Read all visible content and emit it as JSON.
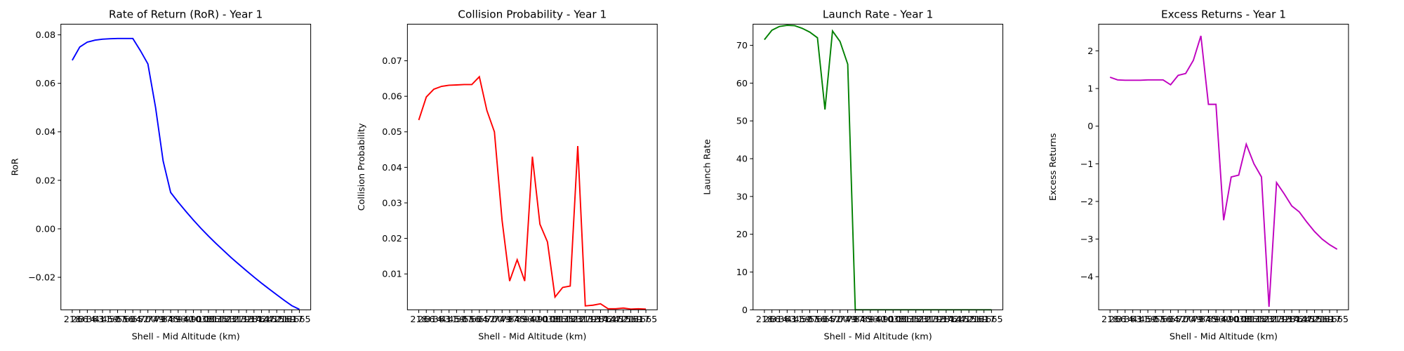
{
  "chart_data": [
    {
      "type": "line",
      "title": "Rate of Return (RoR) - Year 1",
      "xlabel": "Shell - Mid Altitude (km)",
      "ylabel": "RoR",
      "color": "#0000ff",
      "x": [
        218,
        266,
        314,
        363,
        411,
        459,
        507,
        556,
        604,
        652,
        700,
        749,
        797,
        845,
        893,
        942,
        990,
        1038,
        1086,
        1135,
        1183,
        1231,
        1279,
        1328,
        1376,
        1424,
        1472,
        1521,
        1569,
        1617,
        1665
      ],
      "values": [
        0.0695,
        0.075,
        0.077,
        0.0778,
        0.0782,
        0.0784,
        0.0785,
        0.0785,
        0.0785,
        0.0735,
        0.068,
        0.05,
        0.028,
        0.015,
        0.011,
        0.0072,
        0.0036,
        0.0002,
        -0.003,
        -0.0061,
        -0.009,
        -0.0119,
        -0.0146,
        -0.0173,
        -0.0199,
        -0.0224,
        -0.0248,
        -0.0272,
        -0.0295,
        -0.0317,
        -0.0332
      ],
      "xlim": [
        145.65,
        1737.35
      ],
      "ylim": [
        -0.0334,
        0.0844
      ],
      "yticks": [
        {
          "value": -0.02,
          "label": "−0.02"
        },
        {
          "value": 0,
          "label": "0.00"
        },
        0.02,
        0.04,
        0.06,
        0.08
      ]
    },
    {
      "type": "line",
      "title": "Collision Probability - Year 1",
      "xlabel": "Shell - Mid Altitude (km)",
      "ylabel": "Collision Probability",
      "color": "#ff0000",
      "x": [
        218,
        266,
        314,
        363,
        411,
        459,
        507,
        556,
        604,
        652,
        700,
        749,
        797,
        845,
        893,
        942,
        990,
        1038,
        1086,
        1135,
        1183,
        1231,
        1279,
        1328,
        1376,
        1424,
        1472,
        1521,
        1569,
        1617,
        1665
      ],
      "values": [
        0.0533,
        0.0598,
        0.062,
        0.0628,
        0.0631,
        0.0632,
        0.0633,
        0.0633,
        0.0655,
        0.056,
        0.05,
        0.025,
        0.008,
        0.014,
        0.008,
        0.043,
        0.024,
        0.019,
        0.0035,
        0.0062,
        0.0066,
        0.046,
        0.001,
        0.0012,
        0.0016,
        0.0002,
        0.0002,
        0.0004,
        0.0001,
        0.0002,
        0.0001
      ],
      "xlim": [
        145.65,
        1737.35
      ],
      "ylim": [
        -0.0001,
        0.0803
      ],
      "yticks": [
        0.01,
        0.02,
        0.03,
        0.04,
        0.05,
        0.06,
        0.07
      ]
    },
    {
      "type": "line",
      "title": "Launch Rate - Year 1",
      "xlabel": "Shell - Mid Altitude (km)",
      "ylabel": "Launch Rate",
      "color": "#008000",
      "x": [
        218,
        266,
        314,
        363,
        411,
        459,
        507,
        556,
        604,
        652,
        700,
        749,
        797,
        845,
        893,
        942,
        990,
        1038,
        1086,
        1135,
        1183,
        1231,
        1279,
        1328,
        1376,
        1424,
        1472,
        1521,
        1569,
        1617,
        1665
      ],
      "values": [
        71.5,
        74,
        75,
        75.3,
        75.2,
        74.5,
        73.5,
        72,
        53,
        73.8,
        71,
        65,
        0,
        0,
        0,
        0,
        0,
        0,
        0,
        0,
        0,
        0,
        0,
        0,
        0,
        0,
        0,
        0,
        0,
        0,
        0
      ],
      "xlim": [
        145.65,
        1737.35
      ],
      "ylim": [
        0,
        75.6
      ],
      "yticks": [
        0,
        10,
        20,
        30,
        40,
        50,
        60,
        70
      ]
    },
    {
      "type": "line",
      "title": "Excess Returns - Year 1",
      "xlabel": "Shell - Mid Altitude (km)",
      "ylabel": "Excess Returns",
      "color": "#bf00bf",
      "x": [
        218,
        266,
        314,
        363,
        411,
        459,
        507,
        556,
        604,
        652,
        700,
        749,
        797,
        845,
        893,
        942,
        990,
        1038,
        1086,
        1135,
        1183,
        1231,
        1279,
        1328,
        1376,
        1424,
        1472,
        1521,
        1569,
        1617,
        1665
      ],
      "values": [
        1.3,
        1.23,
        1.22,
        1.22,
        1.22,
        1.23,
        1.23,
        1.23,
        1.1,
        1.35,
        1.4,
        1.75,
        2.4,
        0.58,
        0.58,
        -2.5,
        -1.35,
        -1.3,
        -0.48,
        -1.0,
        -1.35,
        -4.8,
        -1.5,
        -1.8,
        -2.12,
        -2.28,
        -2.55,
        -2.8,
        -3.0,
        -3.15,
        -3.27
      ],
      "xlim": [
        145.65,
        1737.35
      ],
      "ylim": [
        -4.88,
        2.71
      ],
      "yticks": [
        {
          "value": -4,
          "label": "−4"
        },
        {
          "value": -3,
          "label": "−3"
        },
        {
          "value": -2,
          "label": "−2"
        },
        {
          "value": -1,
          "label": "−1"
        },
        0,
        1,
        2
      ]
    }
  ]
}
